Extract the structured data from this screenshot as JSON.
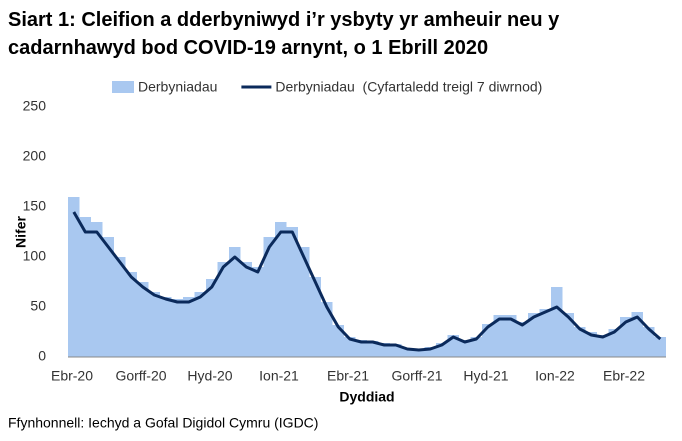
{
  "chart_data": {
    "type": "bar-line",
    "title": "Siart 1: Cleifion a dderbyniwyd i’r ysbyty yr amheuir neu y cadarnhawyd bod COVID-19 arnynt, o 1 Ebrill 2020",
    "x_label": "Dyddiad",
    "y_label": "Nifer",
    "source": "Ffynhonnell: Iechyd a Gofal Digidol Cymru (IGDC)",
    "categories": [
      "Ebr-20",
      null,
      null,
      null,
      null,
      null,
      "Gorff-20",
      null,
      null,
      null,
      null,
      null,
      "Hyd-20",
      null,
      null,
      null,
      null,
      null,
      "Ion-21",
      null,
      null,
      null,
      null,
      null,
      "Ebr-21",
      null,
      null,
      null,
      null,
      null,
      "Gorff-21",
      null,
      null,
      null,
      null,
      null,
      "Hyd-21",
      null,
      null,
      null,
      null,
      null,
      "Ion-22",
      null,
      null,
      null,
      null,
      null,
      "Ebr-22",
      null,
      null,
      null
    ],
    "series": [
      {
        "name": "Derbyniadau",
        "type": "bar",
        "color": "#a9c8f0",
        "values": [
          160,
          140,
          135,
          120,
          100,
          85,
          75,
          65,
          60,
          58,
          60,
          65,
          78,
          95,
          110,
          95,
          90,
          120,
          135,
          130,
          110,
          80,
          55,
          32,
          20,
          17,
          16,
          14,
          13,
          9,
          8,
          10,
          14,
          22,
          17,
          20,
          33,
          42,
          42,
          35,
          44,
          48,
          70,
          44,
          30,
          25,
          22,
          28,
          40,
          45,
          30,
          20
        ]
      },
      {
        "name": "Derbyniadau  (Cyfartaledd treigl 7 diwrnod)",
        "type": "line",
        "color": "#0b2a5b",
        "values": [
          145,
          125,
          125,
          110,
          95,
          80,
          70,
          62,
          58,
          55,
          55,
          60,
          70,
          90,
          100,
          90,
          85,
          110,
          125,
          125,
          100,
          75,
          50,
          30,
          18,
          15,
          15,
          12,
          12,
          8,
          7,
          8,
          12,
          20,
          15,
          18,
          30,
          38,
          38,
          32,
          40,
          45,
          50,
          40,
          28,
          22,
          20,
          25,
          35,
          40,
          28,
          18
        ]
      }
    ],
    "ylim": [
      0,
      250
    ],
    "yticks": [
      0,
      50,
      100,
      150,
      200,
      250
    ],
    "grid": false
  }
}
